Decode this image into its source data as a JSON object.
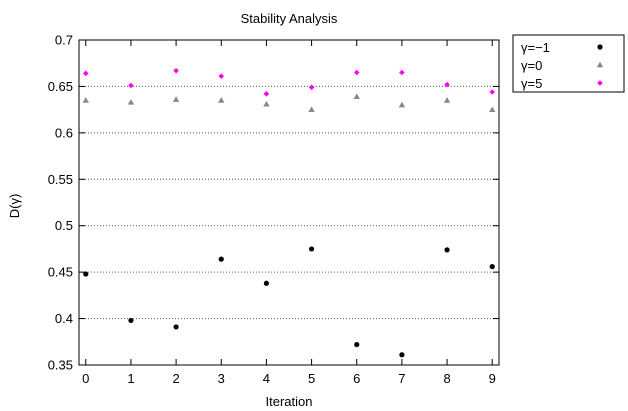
{
  "chart_data": {
    "type": "scatter",
    "title": "Stability Analysis",
    "xlabel": "Iteration",
    "ylabel": "D(γ)",
    "xlim": [
      -0.15,
      9.15
    ],
    "ylim": [
      0.35,
      0.7
    ],
    "xticks": [
      "0",
      "1",
      "2",
      "3",
      "4",
      "5",
      "6",
      "7",
      "8",
      "9"
    ],
    "yticks": [
      "0.35",
      "0.4",
      "0.45",
      "0.5",
      "0.55",
      "0.6",
      "0.65",
      "0.7"
    ],
    "grid": "horizontal-dotted",
    "legend_position": "outside-top-right",
    "series": [
      {
        "name": "γ=−1",
        "marker": "circle",
        "color": "#000000",
        "x": [
          0,
          1,
          2,
          3,
          4,
          5,
          6,
          7,
          8,
          9
        ],
        "y": [
          0.448,
          0.398,
          0.391,
          0.464,
          0.438,
          0.475,
          0.372,
          0.361,
          0.474,
          0.456
        ]
      },
      {
        "name": "γ=0",
        "marker": "triangle",
        "color": "#888888",
        "x": [
          0,
          1,
          2,
          3,
          4,
          5,
          6,
          7,
          8,
          9
        ],
        "y": [
          0.635,
          0.633,
          0.636,
          0.635,
          0.631,
          0.625,
          0.639,
          0.63,
          0.635,
          0.625
        ]
      },
      {
        "name": "γ=5",
        "marker": "diamond",
        "color": "#ff00ff",
        "x": [
          0,
          1,
          2,
          3,
          4,
          5,
          6,
          7,
          8,
          9
        ],
        "y": [
          0.664,
          0.651,
          0.667,
          0.661,
          0.642,
          0.649,
          0.665,
          0.665,
          0.652,
          0.644
        ]
      }
    ]
  }
}
